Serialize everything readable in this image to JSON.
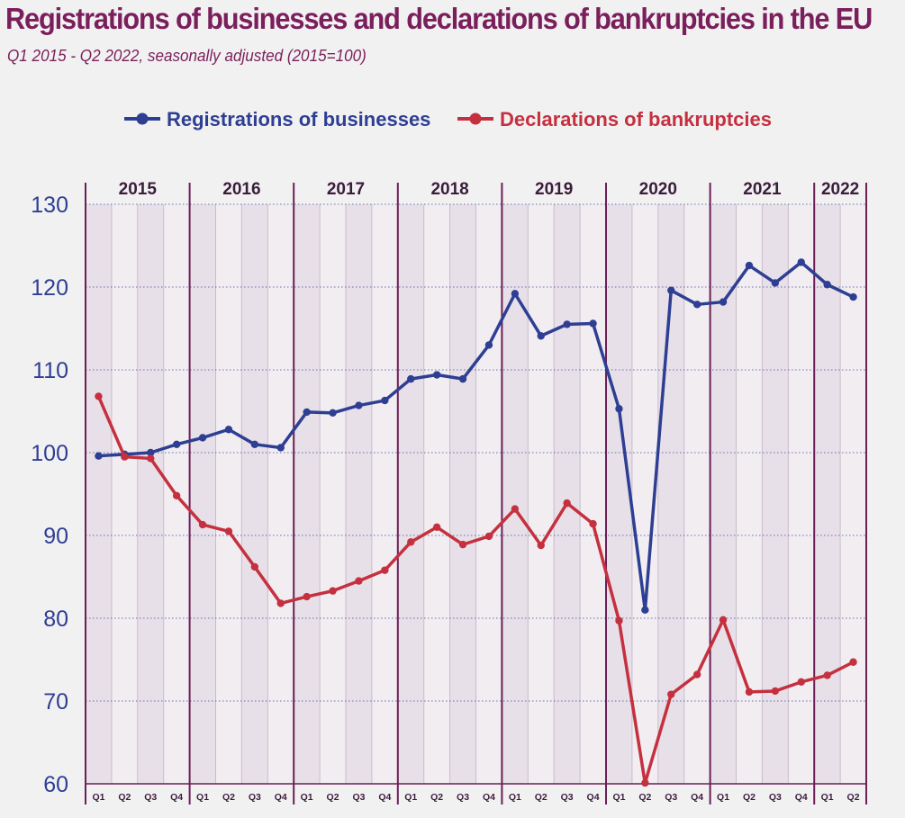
{
  "title": "Registrations of businesses and declarations of bankruptcies in the EU",
  "subtitle": "Q1 2015 - Q2 2022, seasonally adjusted (2015=100)",
  "colors": {
    "registrations": "#2e3f93",
    "bankruptcies": "#c5303f",
    "year_divider": "#6b1f55",
    "axis_text": "#2e3f93"
  },
  "chart_data": {
    "type": "line",
    "title": "Registrations of businesses and declarations of bankruptcies in the EU",
    "subtitle": "Q1 2015 - Q2 2022, seasonally adjusted (2015=100)",
    "ylim": [
      60,
      130
    ],
    "yticks": [
      "60",
      "70",
      "80",
      "90",
      "100",
      "110",
      "120",
      "130"
    ],
    "years": [
      "2015",
      "2016",
      "2017",
      "2018",
      "2019",
      "2020",
      "2021",
      "2022"
    ],
    "quarters": [
      "Q1",
      "Q2",
      "Q3",
      "Q4",
      "Q1",
      "Q2",
      "Q3",
      "Q4",
      "Q1",
      "Q2",
      "Q3",
      "Q4",
      "Q1",
      "Q2",
      "Q3",
      "Q4",
      "Q1",
      "Q2",
      "Q3",
      "Q4",
      "Q1",
      "Q2",
      "Q3",
      "Q4",
      "Q1",
      "Q2",
      "Q3",
      "Q4",
      "Q1",
      "Q2"
    ],
    "grid": true,
    "legend_position": "top-center",
    "series": [
      {
        "name": "Registrations of businesses",
        "color": "#2e3f93",
        "values": [
          99.6,
          99.8,
          100.0,
          101.0,
          101.8,
          102.8,
          101.0,
          100.6,
          104.9,
          104.8,
          105.7,
          106.3,
          108.9,
          109.4,
          108.9,
          113.0,
          119.2,
          114.1,
          115.5,
          115.6,
          105.3,
          81.0,
          119.6,
          117.9,
          118.2,
          122.6,
          120.5,
          123.0,
          120.3,
          118.8
        ]
      },
      {
        "name": "Declarations of bankruptcies",
        "color": "#c5303f",
        "values": [
          106.8,
          99.5,
          99.3,
          94.8,
          91.3,
          90.5,
          86.2,
          81.8,
          82.6,
          83.3,
          84.5,
          85.8,
          89.2,
          91.0,
          88.9,
          89.9,
          93.2,
          88.8,
          93.9,
          91.4,
          79.7,
          60.1,
          70.8,
          73.2,
          79.8,
          71.1,
          71.2,
          72.3,
          73.1,
          74.7
        ]
      }
    ]
  }
}
